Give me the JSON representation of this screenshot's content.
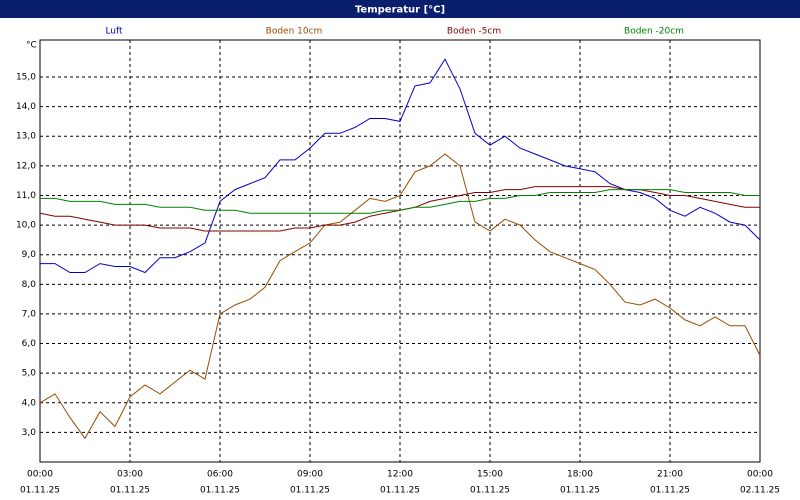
{
  "window_title": "Temperatur [°C]",
  "chart_data": {
    "type": "line",
    "y_unit": "°C",
    "x": [
      0,
      0.5,
      1,
      1.5,
      2,
      2.5,
      3,
      3.5,
      4,
      4.5,
      5,
      5.5,
      6,
      6.5,
      7,
      7.5,
      8,
      8.5,
      9,
      9.5,
      10,
      10.5,
      11,
      11.5,
      12,
      12.5,
      13,
      13.5,
      14,
      14.5,
      15,
      15.5,
      16,
      16.5,
      17,
      17.5,
      18,
      18.5,
      19,
      19.5,
      20,
      20.5,
      21,
      21.5,
      22,
      22.5,
      23,
      23.5,
      24
    ],
    "series": [
      {
        "name": "Luft",
        "color": "#0000cc",
        "values": [
          8.7,
          8.7,
          8.4,
          8.4,
          8.7,
          8.6,
          8.6,
          8.4,
          8.9,
          8.9,
          9.1,
          9.4,
          10.8,
          11.2,
          11.4,
          11.6,
          12.2,
          12.2,
          12.6,
          13.1,
          13.1,
          13.3,
          13.6,
          13.6,
          13.5,
          14.7,
          14.8,
          15.6,
          14.6,
          13.1,
          12.7,
          13.0,
          12.6,
          12.4,
          12.2,
          12.0,
          11.9,
          11.8,
          11.4,
          11.2,
          11.1,
          10.9,
          10.5,
          10.3,
          10.6,
          10.4,
          10.1,
          10.0,
          9.5
        ]
      },
      {
        "name": "Boden 10cm",
        "color": "#994c00",
        "values": [
          4.0,
          4.3,
          3.5,
          2.8,
          3.7,
          3.2,
          4.2,
          4.6,
          4.3,
          4.7,
          5.1,
          4.8,
          7.0,
          7.3,
          7.5,
          7.9,
          8.8,
          9.1,
          9.4,
          10.0,
          10.1,
          10.5,
          10.9,
          10.8,
          11.0,
          11.8,
          12.0,
          12.4,
          12.0,
          10.1,
          9.8,
          10.2,
          10.0,
          9.5,
          9.1,
          8.9,
          8.7,
          8.5,
          8.0,
          7.4,
          7.3,
          7.5,
          7.2,
          6.8,
          6.6,
          6.9,
          6.6,
          6.6,
          5.6
        ]
      },
      {
        "name": "Boden -5cm",
        "color": "#800000",
        "values": [
          10.4,
          10.3,
          10.3,
          10.2,
          10.1,
          10.0,
          10.0,
          10.0,
          9.9,
          9.9,
          9.9,
          9.8,
          9.8,
          9.8,
          9.8,
          9.8,
          9.8,
          9.9,
          9.9,
          10.0,
          10.0,
          10.1,
          10.3,
          10.4,
          10.5,
          10.6,
          10.8,
          10.9,
          11.0,
          11.1,
          11.1,
          11.2,
          11.2,
          11.3,
          11.3,
          11.3,
          11.3,
          11.3,
          11.3,
          11.2,
          11.2,
          11.1,
          11.0,
          11.0,
          10.9,
          10.8,
          10.7,
          10.6,
          10.6
        ]
      },
      {
        "name": "Boden -20cm",
        "color": "#008000",
        "values": [
          10.9,
          10.9,
          10.8,
          10.8,
          10.8,
          10.7,
          10.7,
          10.7,
          10.6,
          10.6,
          10.6,
          10.5,
          10.5,
          10.5,
          10.4,
          10.4,
          10.4,
          10.4,
          10.4,
          10.4,
          10.4,
          10.4,
          10.4,
          10.5,
          10.5,
          10.6,
          10.6,
          10.7,
          10.8,
          10.8,
          10.9,
          10.9,
          11.0,
          11.0,
          11.1,
          11.1,
          11.1,
          11.1,
          11.2,
          11.2,
          11.2,
          11.2,
          11.2,
          11.1,
          11.1,
          11.1,
          11.1,
          11.0,
          11.0
        ]
      }
    ],
    "xlim": [
      0,
      24
    ],
    "xticks": [
      {
        "value": 0,
        "label": "00:00"
      },
      {
        "value": 3,
        "label": "03:00"
      },
      {
        "value": 6,
        "label": "06:00"
      },
      {
        "value": 9,
        "label": "09:00"
      },
      {
        "value": 12,
        "label": "12:00"
      },
      {
        "value": 15,
        "label": "15:00"
      },
      {
        "value": 18,
        "label": "18:00"
      },
      {
        "value": 21,
        "label": "21:00"
      },
      {
        "value": 24,
        "label": "00:00"
      }
    ],
    "xtick_dates": [
      "01.11.25",
      "01.11.25",
      "01.11.25",
      "01.11.25",
      "01.11.25",
      "01.11.25",
      "01.11.25",
      "01.11.25",
      "02.11.25"
    ],
    "ylim": [
      2,
      16.25
    ],
    "yticks": [
      {
        "value": 3,
        "label": "3,0"
      },
      {
        "value": 4,
        "label": "4,0"
      },
      {
        "value": 5,
        "label": "5,0"
      },
      {
        "value": 6,
        "label": "6,0"
      },
      {
        "value": 7,
        "label": "7,0"
      },
      {
        "value": 8,
        "label": "8,0"
      },
      {
        "value": 9,
        "label": "9,0"
      },
      {
        "value": 10,
        "label": "10,0"
      },
      {
        "value": 11,
        "label": "11,0"
      },
      {
        "value": 12,
        "label": "12,0"
      },
      {
        "value": 13,
        "label": "13,0"
      },
      {
        "value": 14,
        "label": "14,0"
      },
      {
        "value": 15,
        "label": "15,0"
      }
    ],
    "grid": true
  }
}
